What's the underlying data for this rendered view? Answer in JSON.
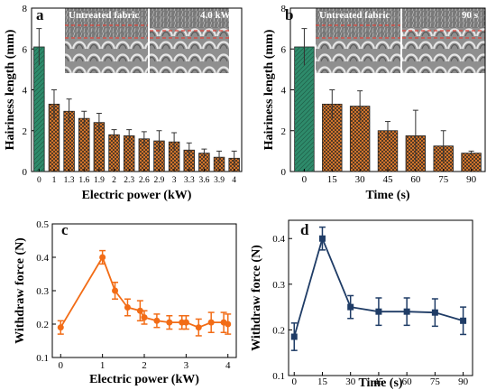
{
  "chart_data": [
    {
      "panel": "a",
      "type": "bar",
      "xlabel": "Electric power (kW)",
      "ylabel": "Hairiness length (mm)",
      "ylim": [
        0,
        8
      ],
      "yticks": [
        "0",
        "2",
        "4",
        "6",
        "8"
      ],
      "categories": [
        "0",
        "1",
        "1.3",
        "1.6",
        "1.9",
        "2",
        "2.3",
        "2.6",
        "2.9",
        "3",
        "3.3",
        "3.6",
        "3.9",
        "4"
      ],
      "values": [
        6.1,
        3.3,
        2.95,
        2.6,
        2.4,
        1.8,
        1.75,
        1.6,
        1.5,
        1.45,
        1.05,
        0.9,
        0.7,
        0.65
      ],
      "errors": [
        0.9,
        0.7,
        0.6,
        0.35,
        0.45,
        0.25,
        0.3,
        0.35,
        0.5,
        0.45,
        0.35,
        0.2,
        0.3,
        0.35
      ],
      "colors": {
        "control": "#2e8b6b",
        "treated": "#e87f2c",
        "hatch": "#222222"
      },
      "insets": [
        {
          "label": "Untreated fabric"
        },
        {
          "label": "4.0 kW"
        }
      ]
    },
    {
      "panel": "b",
      "type": "bar",
      "xlabel": "Time (s)",
      "ylabel": "Hairiness length (mm)",
      "ylim": [
        0,
        8
      ],
      "yticks": [
        "0",
        "2",
        "4",
        "6",
        "8"
      ],
      "categories": [
        "0",
        "15",
        "30",
        "45",
        "60",
        "75",
        "90"
      ],
      "values": [
        6.1,
        3.3,
        3.2,
        2.0,
        1.75,
        1.25,
        0.9
      ],
      "errors": [
        0.9,
        0.7,
        0.75,
        0.45,
        1.25,
        0.75,
        0.1
      ],
      "colors": {
        "control": "#2e8b6b",
        "treated": "#e87f2c",
        "hatch": "#222222"
      },
      "insets": [
        {
          "label": "Untreated fabric"
        },
        {
          "label": "90 s"
        }
      ]
    },
    {
      "panel": "c",
      "type": "line",
      "xlabel": "Electric power (kW)",
      "ylabel": "Withdraw force (N)",
      "xlim": [
        -0.2,
        4.2
      ],
      "ylim": [
        0.1,
        0.5
      ],
      "xticks": [
        "0",
        "1",
        "2",
        "3",
        "4"
      ],
      "yticks": [
        "0.1",
        "0.2",
        "0.3",
        "0.4",
        "0.5"
      ],
      "x": [
        0,
        1,
        1.3,
        1.6,
        1.9,
        2,
        2.3,
        2.6,
        2.9,
        3,
        3.3,
        3.6,
        3.9,
        4
      ],
      "y": [
        0.19,
        0.4,
        0.3,
        0.25,
        0.24,
        0.22,
        0.21,
        0.205,
        0.205,
        0.205,
        0.19,
        0.205,
        0.205,
        0.2
      ],
      "errors": [
        0.02,
        0.02,
        0.025,
        0.025,
        0.03,
        0.02,
        0.02,
        0.02,
        0.02,
        0.02,
        0.025,
        0.03,
        0.03,
        0.03
      ],
      "color": "#f26c16"
    },
    {
      "panel": "d",
      "type": "line",
      "xlabel": "Time (s)",
      "ylabel": "Withdraw force (N)",
      "xlim": [
        -3,
        95
      ],
      "ylim": [
        0.1,
        0.44
      ],
      "xticks": [
        "0",
        "15",
        "30",
        "45",
        "60",
        "75",
        "90"
      ],
      "yticks": [
        "0.1",
        "0.2",
        "0.3",
        "0.4"
      ],
      "x": [
        0,
        15,
        30,
        45,
        60,
        75,
        90
      ],
      "y": [
        0.185,
        0.4,
        0.25,
        0.24,
        0.24,
        0.238,
        0.22
      ],
      "errors": [
        0.03,
        0.025,
        0.025,
        0.03,
        0.03,
        0.03,
        0.03
      ],
      "color": "#1f3c66"
    }
  ]
}
